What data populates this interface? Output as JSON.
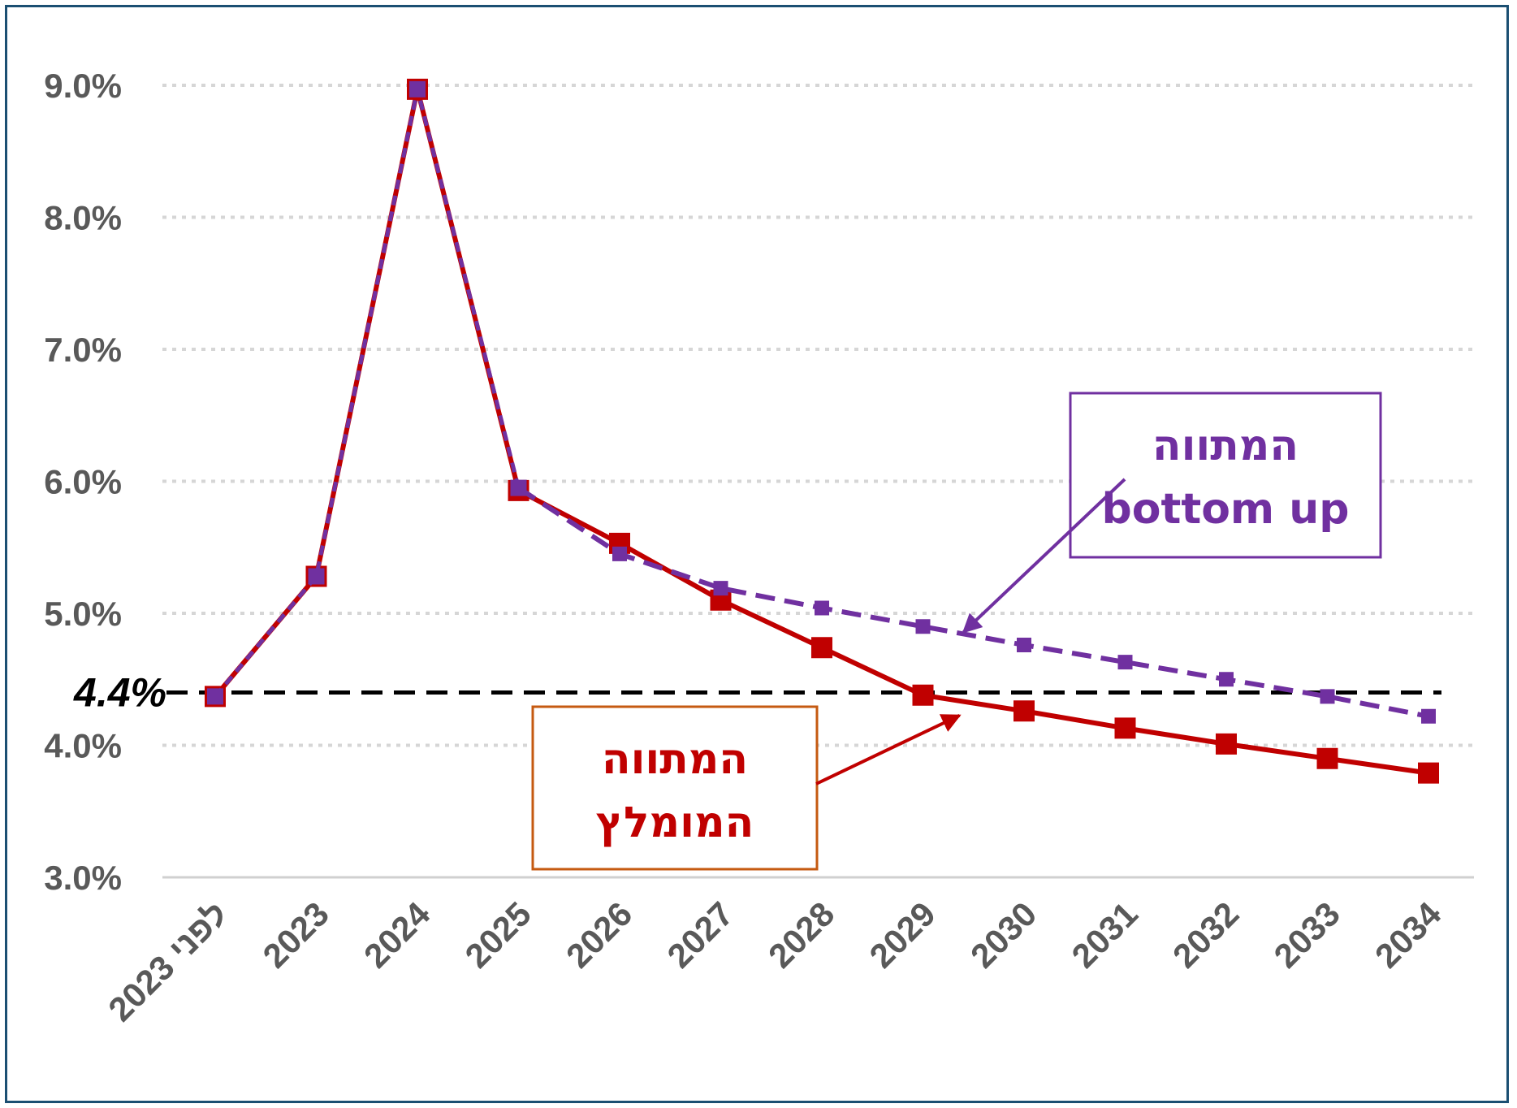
{
  "chart_data": {
    "type": "line",
    "categories": [
      "לפני 2023",
      "2023",
      "2024",
      "2025",
      "2026",
      "2027",
      "2028",
      "2029",
      "2030",
      "2031",
      "2032",
      "2033",
      "2034"
    ],
    "ylim": [
      3.0,
      9.0
    ],
    "yticks": [
      "9.0%",
      "8.0%",
      "7.0%",
      "6.0%",
      "5.0%",
      "4.0%",
      "3.0%"
    ],
    "ytick_values": [
      9.0,
      8.0,
      7.0,
      6.0,
      5.0,
      4.0,
      3.0
    ],
    "grid": "horizontal dotted",
    "series": [
      {
        "key": "recommended",
        "color": "#c00000",
        "style": "solid",
        "marker": "square",
        "values": [
          4.37,
          5.28,
          8.97,
          5.93,
          5.53,
          5.1,
          4.74,
          4.38,
          4.26,
          4.13,
          4.01,
          3.9,
          3.79
        ]
      },
      {
        "key": "bottom_up",
        "color": "#7030a0",
        "style": "dashed",
        "marker": "square",
        "values": [
          4.37,
          5.28,
          8.97,
          5.95,
          5.45,
          5.19,
          5.04,
          4.9,
          4.76,
          4.63,
          4.5,
          4.37,
          4.22
        ]
      }
    ],
    "reference_line": {
      "value": 4.4,
      "label": "4.4%",
      "color": "#000000",
      "style": "dashed"
    },
    "annotations": [
      {
        "key": "bottom_up",
        "line1": "המתווה",
        "line2": "bottom up",
        "color": "#7030a0",
        "border": "#7030a0",
        "points_to_category": "2029",
        "points_to_value": 4.95
      },
      {
        "key": "recommended",
        "line1": "המתווה",
        "line2": "המומלץ",
        "color": "#c00000",
        "border": "#c55a11",
        "points_to_category": "2029",
        "points_to_value": 4.3
      }
    ]
  }
}
